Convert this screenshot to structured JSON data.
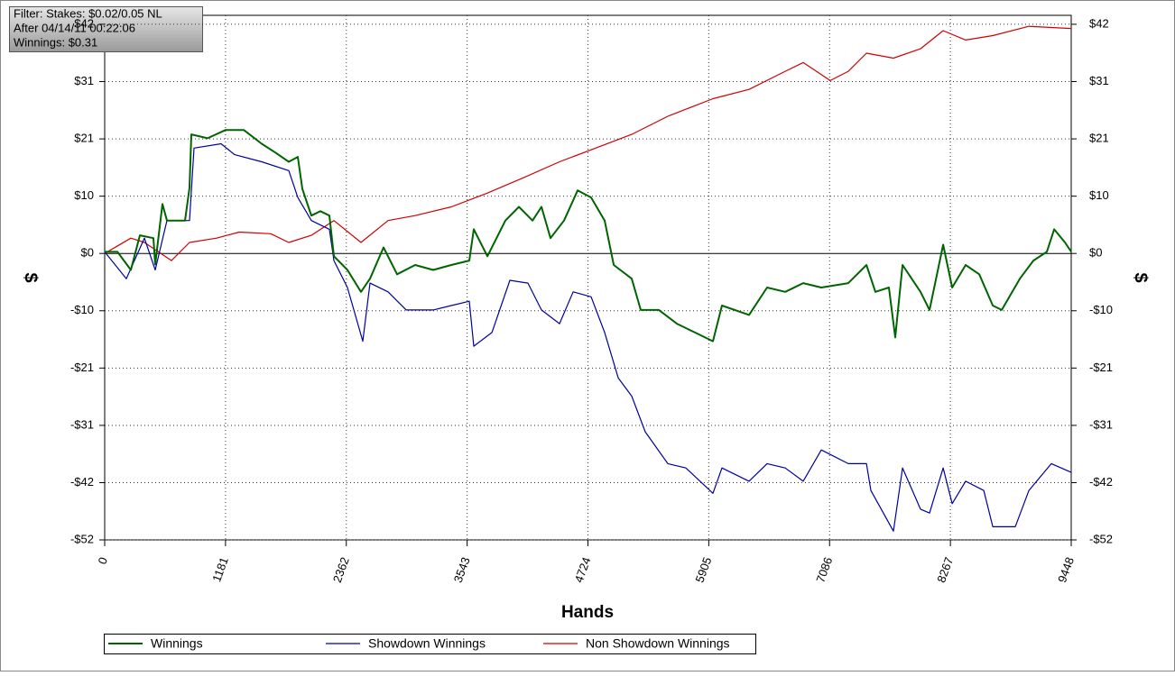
{
  "chart_data": {
    "type": "line",
    "annotations": [
      "Filter: Stakes: $0.02/0.05 NL",
      "After 04/14/11 00:22:06",
      "Winnings: $0.31"
    ],
    "x_label": "Hands",
    "y_label": "$",
    "y2_label": "$",
    "xlim": [
      0,
      9448
    ],
    "xticks": [
      0,
      1181,
      2362,
      3543,
      4724,
      5905,
      7086,
      8267,
      9448
    ],
    "ylim": [
      -52.2,
      43.4
    ],
    "yticks": [
      {
        "value": 41.77,
        "label": "$42"
      },
      {
        "value": 31.33,
        "label": "$31"
      },
      {
        "value": 20.88,
        "label": "$21"
      },
      {
        "value": 10.44,
        "label": "$10"
      },
      {
        "value": 0,
        "label": "$0"
      },
      {
        "value": -10.44,
        "label": "-$10"
      },
      {
        "value": -20.88,
        "label": "-$21"
      },
      {
        "value": -31.33,
        "label": "-$31"
      },
      {
        "value": -41.77,
        "label": "-$42"
      },
      {
        "value": -52.2,
        "label": "-$52"
      }
    ],
    "grid": true,
    "series": [
      {
        "name": "Winnings",
        "color": "#006400",
        "x": [
          0,
          124,
          256,
          344,
          476,
          494,
          565,
          609,
          785,
          829,
          847,
          1006,
          1182,
          1359,
          1535,
          1667,
          1800,
          1888,
          1932,
          2020,
          2108,
          2197,
          2241,
          2373,
          2505,
          2594,
          2726,
          2858,
          3035,
          3211,
          3388,
          3564,
          3608,
          3741,
          3917,
          4049,
          4182,
          4270,
          4358,
          4490,
          4623,
          4755,
          4887,
          4976,
          5152,
          5240,
          5417,
          5593,
          5770,
          5946,
          6034,
          6299,
          6475,
          6652,
          6828,
          7005,
          7269,
          7446,
          7534,
          7666,
          7728,
          7799,
          7975,
          8063,
          8196,
          8284,
          8416,
          8549,
          8681,
          8769,
          8946,
          9078,
          9210,
          9281,
          9387,
          9448
        ],
        "values": [
          0.3,
          0.3,
          -3,
          3.3,
          2.8,
          -2,
          9,
          6,
          6,
          12,
          21.7,
          21,
          22.5,
          22.5,
          20,
          18.4,
          16.7,
          17.6,
          11.8,
          6.9,
          7.7,
          6.9,
          -0.5,
          -3,
          -7,
          -4.6,
          1.1,
          -3.8,
          -2.1,
          -3,
          -2.1,
          -1.3,
          4.4,
          -0.5,
          6,
          8.5,
          6,
          8.5,
          2.8,
          6,
          11.5,
          10.2,
          6,
          -2.1,
          -4.6,
          -10.3,
          -10.3,
          -12.8,
          -14.4,
          -16,
          -9.5,
          -11.2,
          -6.2,
          -7,
          -5.4,
          -6.2,
          -5.4,
          -2.1,
          -7,
          -6.2,
          -15.3,
          -2.1,
          -7,
          -10.3,
          1.6,
          -6.2,
          -2.1,
          -3.8,
          -9.5,
          -10.3,
          -4.6,
          -1.3,
          0.3,
          4.4,
          2,
          0.31
        ]
      },
      {
        "name": "Showdown Winnings",
        "color": "#0000a0",
        "x": [
          0,
          212,
          388,
          494,
          609,
          829,
          873,
          1138,
          1270,
          1535,
          1800,
          1888,
          2020,
          2197,
          2241,
          2373,
          2523,
          2594,
          2770,
          2947,
          3211,
          3388,
          3564,
          3608,
          3785,
          3961,
          4137,
          4270,
          4446,
          4579,
          4755,
          4887,
          5020,
          5152,
          5284,
          5505,
          5681,
          5946,
          6034,
          6299,
          6475,
          6652,
          6828,
          7005,
          7269,
          7446,
          7490,
          7710,
          7799,
          7975,
          8063,
          8196,
          8284,
          8416,
          8593,
          8681,
          8901,
          9034,
          9254,
          9448
        ],
        "values": [
          0.3,
          -4.6,
          2.8,
          -3,
          6,
          6,
          19.2,
          20,
          18,
          16.7,
          15.1,
          10.2,
          6,
          4.4,
          -1.3,
          -6.2,
          -16,
          -5.4,
          -7,
          -10.3,
          -10.3,
          -9.5,
          -8.7,
          -16.9,
          -14.4,
          -4.9,
          -5.4,
          -10.3,
          -12.8,
          -7,
          -7.9,
          -14.4,
          -22.7,
          -26,
          -32.5,
          -38.3,
          -39.1,
          -43.7,
          -39.1,
          -41.5,
          -38.3,
          -39.1,
          -41.5,
          -35.8,
          -38.3,
          -38.3,
          -43.2,
          -50.6,
          -39.1,
          -46.6,
          -47.3,
          -39.1,
          -45.6,
          -41.5,
          -43.2,
          -49.8,
          -49.8,
          -43.2,
          -38.3,
          -39.9
        ]
      },
      {
        "name": "Non Showdown Winnings",
        "color": "#d00000",
        "x": [
          0,
          256,
          388,
          653,
          829,
          1094,
          1314,
          1623,
          1800,
          2020,
          2241,
          2505,
          2770,
          3035,
          3388,
          3741,
          4093,
          4446,
          4799,
          5152,
          5505,
          5946,
          6299,
          6652,
          6828,
          7093,
          7269,
          7446,
          7710,
          7975,
          8196,
          8416,
          8681,
          9034,
          9448
        ],
        "values": [
          0,
          2.8,
          2,
          -1.3,
          2,
          2.8,
          3.9,
          3.6,
          2,
          3.3,
          6,
          2,
          6,
          6.9,
          8.5,
          11,
          13.8,
          16.7,
          19.2,
          21.7,
          25,
          28.2,
          29.9,
          33.2,
          34.8,
          31.5,
          33.2,
          36.5,
          35.6,
          37.3,
          40.6,
          38.9,
          39.7,
          41.4,
          41
        ]
      }
    ]
  }
}
